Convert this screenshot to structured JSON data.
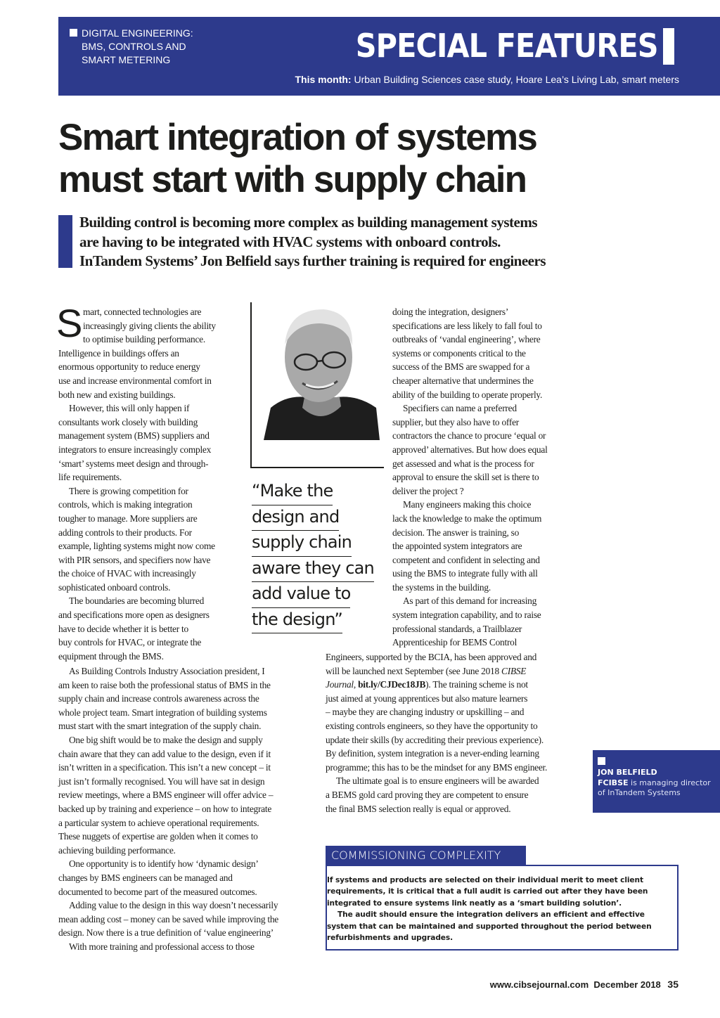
{
  "header": {
    "kicker": [
      "DIGITAL ENGINEERING:",
      "BMS, CONTROLS AND",
      "SMART METERING"
    ],
    "section": "SPECIAL FEATURES",
    "this_month_label": "This month:",
    "this_month_text": " Urban Building Sciences case study, Hoare Lea’s Living Lab, smart meters",
    "accent_color": "#2d3a8c"
  },
  "article": {
    "headline": [
      "Smart integration of systems",
      "must start with supply chain"
    ],
    "standfirst": [
      "Building control is becoming more complex as building management systems",
      "are having to be integrated with HVAC systems with onboard controls."
    ],
    "standfirst_last_pre": "InTandem Systems’ ",
    "standfirst_author": "Jon Belfield",
    "standfirst_last_post": " says further training is required for engineers",
    "drop_cap": "S",
    "columns": {
      "left_narrow": [
        [
          "mart, connected technologies are",
          "increasingly giving clients the ability",
          "to optimise building performance.",
          "Intelligence in buildings offers an",
          "enormous opportunity to reduce energy",
          "use and increase environmental comfort in",
          "both new and existing buildings."
        ],
        [
          "However, this will only happen if",
          "consultants work closely with building",
          "management system (BMS) suppliers and",
          "integrators to ensure increasingly complex",
          "‘smart’ systems meet design and through-",
          "life requirements."
        ],
        [
          "There is growing competition for",
          "controls, which is making integration",
          "tougher to manage. More suppliers are",
          "adding controls to their products. For",
          "example, lighting systems might now come",
          "with PIR sensors, and specifiers now have",
          "the choice of  HVAC with increasingly",
          "sophisticated onboard controls."
        ],
        [
          "The boundaries are becoming blurred",
          "and specifications more open as designers",
          "have to decide whether it is better to",
          "buy controls for HVAC, or integrate the",
          "equipment through the BMS."
        ]
      ],
      "left_wide": [
        [
          "As Building Controls Industry Association president, I",
          "am keen to raise both the professional status of BMS in the",
          "supply chain and increase controls awareness across the",
          "whole project team. Smart integration of building systems",
          "must start with the smart integration of the supply chain."
        ],
        [
          "One big shift would be to make the design and supply",
          "chain aware that they can add value to the design, even if it",
          "isn’t written in a specification. This isn’t a new concept – it",
          "just isn’t formally recognised. You will have sat in design",
          "review meetings, where a BMS engineer will offer advice –",
          "backed up by training and experience – on how to integrate",
          "a particular system to achieve operational requirements.",
          "These nuggets of expertise are golden when it comes to",
          "achieving building performance."
        ],
        [
          "One opportunity is to identify how ‘dynamic design’",
          "changes by BMS engineers can be managed and",
          "documented to become part of the measured outcomes."
        ],
        [
          "Adding value to the design in this way doesn’t necessarily",
          "mean adding cost – money can be saved while improving the",
          "design. Now there is a true definition of ‘value engineering’"
        ],
        [
          "With more training and professional access to those"
        ]
      ],
      "right_narrow": [
        [
          "doing the integration, designers’",
          "specifications are less likely to fall foul to",
          "outbreaks of ‘vandal engineering’, where",
          "systems or components critical to the",
          "success of the BMS are swapped for a",
          "cheaper alternative that undermines the",
          "ability of the building to operate properly."
        ],
        [
          "Specifiers can name a preferred",
          "supplier, but they also have to offer",
          "contractors the chance to procure ‘equal or",
          "approved’ alternatives. But how does equal",
          "get assessed and what is the process for",
          "approval to ensure the skill set is there to",
          "deliver the project ?"
        ],
        [
          "Many engineers making this choice",
          "lack the knowledge to make the optimum",
          "decision. The answer is training, so",
          "the appointed system integrators are",
          "competent and confident in selecting and",
          "using the BMS to integrate fully with all",
          "the systems in the building."
        ],
        [
          "As part of this demand for increasing",
          "system integration capability, and to raise",
          "professional standards, a Trailblazer",
          "Apprenticeship for BEMS Control"
        ]
      ],
      "right_wide": [
        [
          "Engineers, supported by the BCIA, has been approved and",
          [
            {
              "t": "will be launched next September (see June 2018 "
            },
            {
              "t": "CIBSE",
              "s": "i"
            }
          ],
          [
            {
              "t": "Journal",
              "s": "i"
            },
            {
              "t": ", "
            },
            {
              "t": "bit.ly/CJDec18JB",
              "s": "b"
            },
            {
              "t": "). The training scheme is not"
            }
          ],
          "just aimed at young apprentices but also mature learners",
          "– maybe they are changing industry or upskilling – and",
          "existing controls engineers, so they have the opportunity to",
          "update their skills (by accrediting their previous experience).",
          "By definition, system integration is a never-ending learning",
          "programme; this has to be the mindset for any BMS engineer."
        ],
        [
          "The ultimate goal is to ensure engineers will be awarded",
          "a BEMS gold card proving they are competent to ensure",
          "the final BMS selection really is equal or approved."
        ]
      ]
    },
    "pull_quote": [
      "“Make the",
      "design and",
      "supply chain",
      "aware they can",
      "add value to",
      "the design”"
    ]
  },
  "bio": {
    "name": "JON BELFIELD",
    "title": "FCIBSE",
    "text": " is managing director of InTandem Systems"
  },
  "sidebar_box": {
    "heading": "COMMISSIONING COMPLEXITY",
    "paragraphs": [
      "If systems and products are selected on their individual merit to meet client requirements, it is critical that a full audit is carried out after they have been integrated to ensure systems link neatly as a ‘smart building solution’.",
      "The audit should ensure the integration delivers an efficient and effective system that can be maintained and supported throughout the period between refurbishments and upgrades."
    ]
  },
  "footer": {
    "url": "www.cibsejournal.com",
    "date": "December 2018",
    "page": "35"
  }
}
